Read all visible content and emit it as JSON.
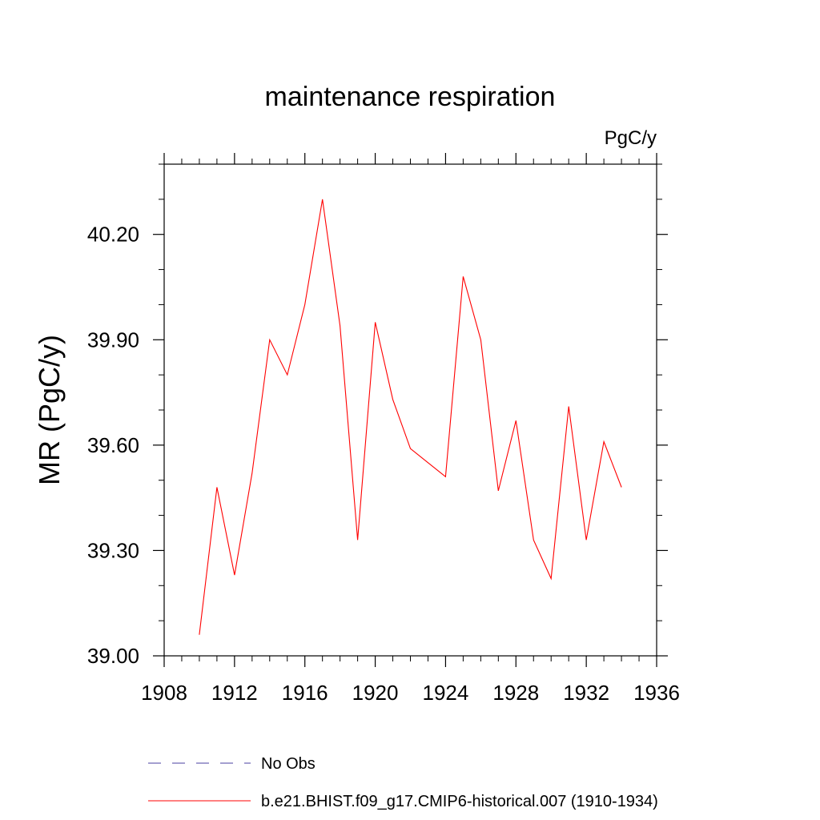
{
  "chart_data": {
    "type": "line",
    "title": "maintenance respiration",
    "unit_label": "PgC/y",
    "ylabel": "MR  (PgC/y)",
    "xlabel": "",
    "xlim": [
      1908,
      1936
    ],
    "ylim": [
      39.0,
      40.4
    ],
    "x_ticks": [
      1908,
      1912,
      1916,
      1920,
      1924,
      1928,
      1932,
      1936
    ],
    "x_tick_labels": [
      "1908",
      "1912",
      "1916",
      "1920",
      "1924",
      "1928",
      "1932",
      "1936"
    ],
    "y_ticks": [
      39.0,
      39.3,
      39.6,
      39.9,
      40.2
    ],
    "y_tick_labels": [
      "39.00",
      "39.30",
      "39.60",
      "39.90",
      "40.20"
    ],
    "grid": false,
    "legend_placement": "bottom",
    "series": [
      {
        "name": "b.e21.BHIST.f09_g17.CMIP6-historical.007 (1910-1934)",
        "color": "#ff0000",
        "style": "solid",
        "x": [
          1910,
          1911,
          1912,
          1913,
          1914,
          1915,
          1916,
          1917,
          1918,
          1919,
          1920,
          1921,
          1922,
          1923,
          1924,
          1925,
          1926,
          1927,
          1928,
          1929,
          1930,
          1931,
          1932,
          1933,
          1934
        ],
        "values": [
          39.06,
          39.48,
          39.23,
          39.52,
          39.9,
          39.8,
          40.0,
          40.3,
          39.94,
          39.33,
          39.95,
          39.73,
          39.59,
          39.55,
          39.51,
          40.08,
          39.9,
          39.47,
          39.67,
          39.33,
          39.22,
          39.71,
          39.33,
          39.61,
          39.48
        ]
      }
    ],
    "legend": [
      {
        "label": "No Obs",
        "color": "#4a3fa0",
        "style": "dashed"
      },
      {
        "label": "b.e21.BHIST.f09_g17.CMIP6-historical.007 (1910-1934)",
        "color": "#ff0000",
        "style": "solid"
      }
    ]
  }
}
